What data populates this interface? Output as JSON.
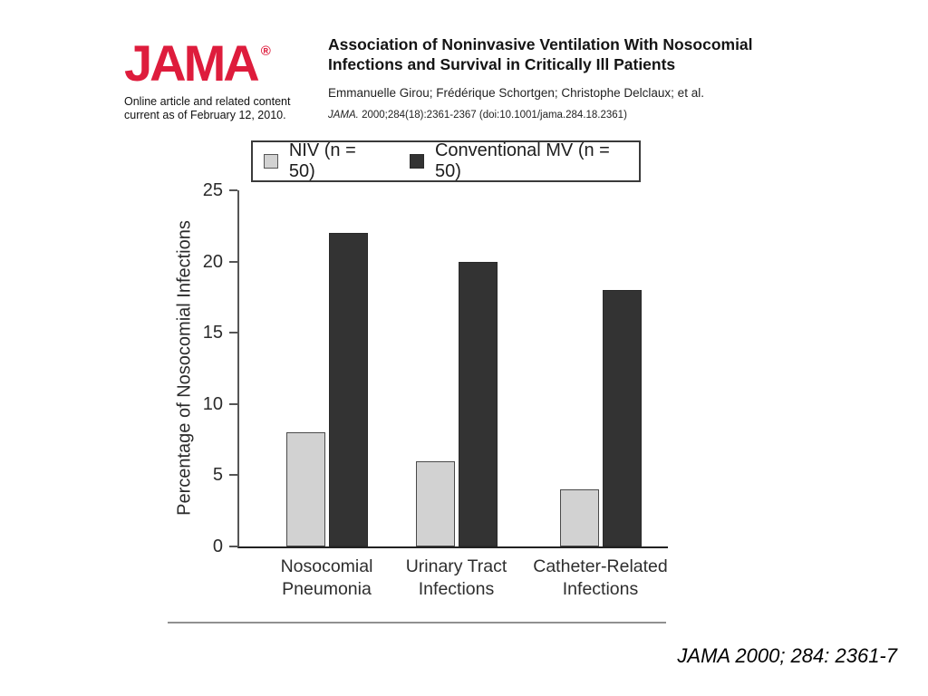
{
  "header": {
    "logo_text": "JAMA",
    "logo_registered": "®",
    "logo_subtext_line1": "Online article and related content",
    "logo_subtext_line2": "current as of February 12, 2010.",
    "title_line1": "Association of Noninvasive Ventilation With Nosocomial",
    "title_line2": "Infections and Survival in Critically Ill Patients",
    "authors": "Emmanuelle Girou; Frédérique Schortgen; Christophe Delclaux; et al.",
    "citation_journal": "JAMA.",
    "citation_rest": " 2000;284(18):2361-2367 (doi:10.1001/jama.284.18.2361)"
  },
  "chart_data": {
    "type": "bar",
    "title": "",
    "xlabel": "",
    "ylabel": "Percentage of Nosocomial Infections",
    "ylim": [
      0,
      25
    ],
    "y_ticks": [
      0,
      5,
      10,
      15,
      20,
      25
    ],
    "grid": false,
    "legend_position": "top",
    "categories": [
      "Nosocomial Pneumonia",
      "Urinary Tract Infections",
      "Catheter-Related Infections"
    ],
    "categories_lines": [
      [
        "Nosocomial",
        "Pneumonia"
      ],
      [
        "Urinary Tract",
        "Infections"
      ],
      [
        "Catheter-Related",
        "Infections"
      ]
    ],
    "series": [
      {
        "name": "NIV (n = 50)",
        "values": [
          8,
          6,
          4
        ],
        "color": "#d2d2d2"
      },
      {
        "name": "Conventional MV (n = 50)",
        "values": [
          22,
          20,
          18
        ],
        "color": "#333333"
      }
    ]
  },
  "footer": {
    "citation": "JAMA 2000; 284: 2361-7"
  },
  "colors": {
    "jama_red": "#DE1C3C",
    "niv_bar": "#d2d2d2",
    "niv_bar_border": "#4a4a4a",
    "mv_bar": "#333333",
    "axis": "#555555"
  }
}
